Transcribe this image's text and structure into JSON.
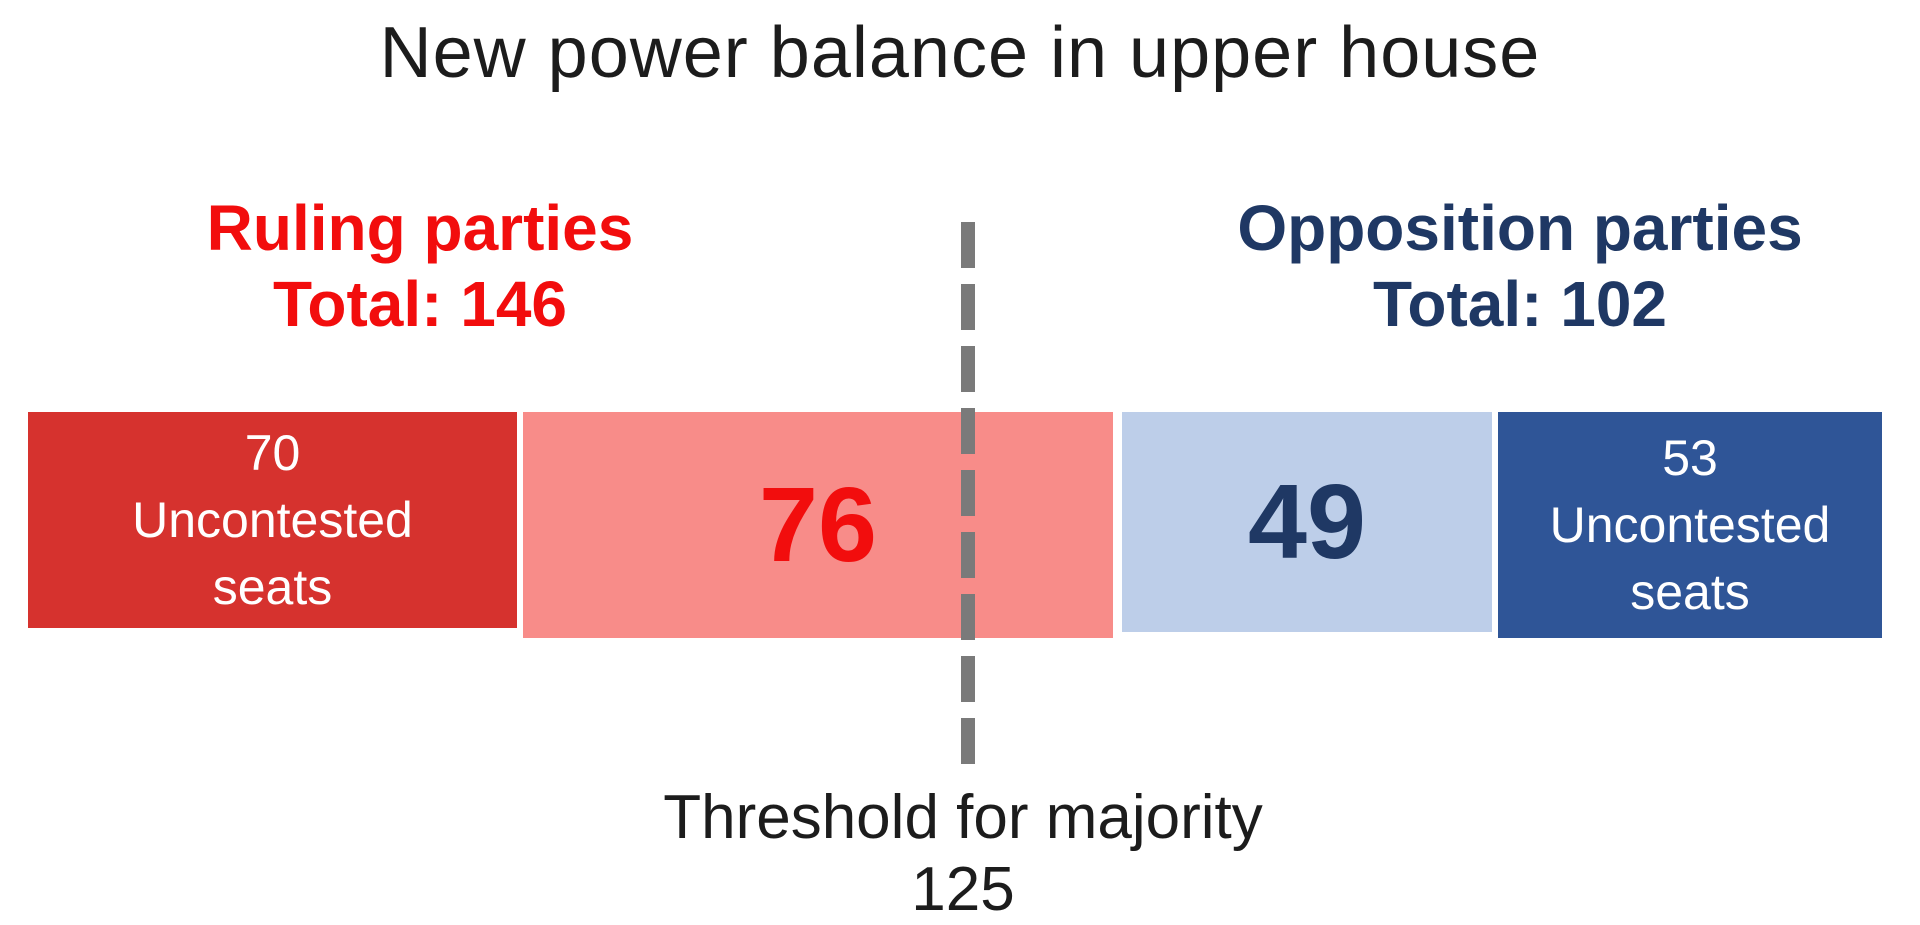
{
  "title": "New power balance in upper house",
  "chart_data": {
    "type": "bar",
    "variant": "horizontal-stacked-seat-bar",
    "title": "New power balance in upper house",
    "total_seats": 248,
    "axis": {
      "xmin": 0,
      "xmax": 248,
      "grid": false
    },
    "groups": [
      {
        "name": "Ruling parties",
        "total": 146,
        "total_label": "Total: 146",
        "text_color": "#F20D0D",
        "segments": [
          {
            "value": 70,
            "label_lines": [
              "70",
              "Uncontested",
              "seats"
            ],
            "color": "#D6322E",
            "text_color": "#FFFFFF"
          },
          {
            "value": 76,
            "label_lines": [
              "76"
            ],
            "color": "#F88C89",
            "text_color": "#F20D0D"
          }
        ]
      },
      {
        "name": "Opposition parties",
        "total": 102,
        "total_label": "Total: 102",
        "text_color": "#1F3864",
        "segments": [
          {
            "value": 49,
            "label_lines": [
              "49"
            ],
            "color": "#BDCEE9",
            "text_color": "#1F3864"
          },
          {
            "value": 53,
            "label_lines": [
              "53",
              "Uncontested",
              "seats"
            ],
            "color": "#2F5597",
            "text_color": "#FFFFFF"
          }
        ]
      }
    ],
    "threshold": {
      "value": 125,
      "label": "Threshold for majority",
      "line_color": "#7A7A7A",
      "line_style": "dashed-vertical"
    },
    "title_color": "#1C1C1C",
    "legend_position": "none"
  }
}
